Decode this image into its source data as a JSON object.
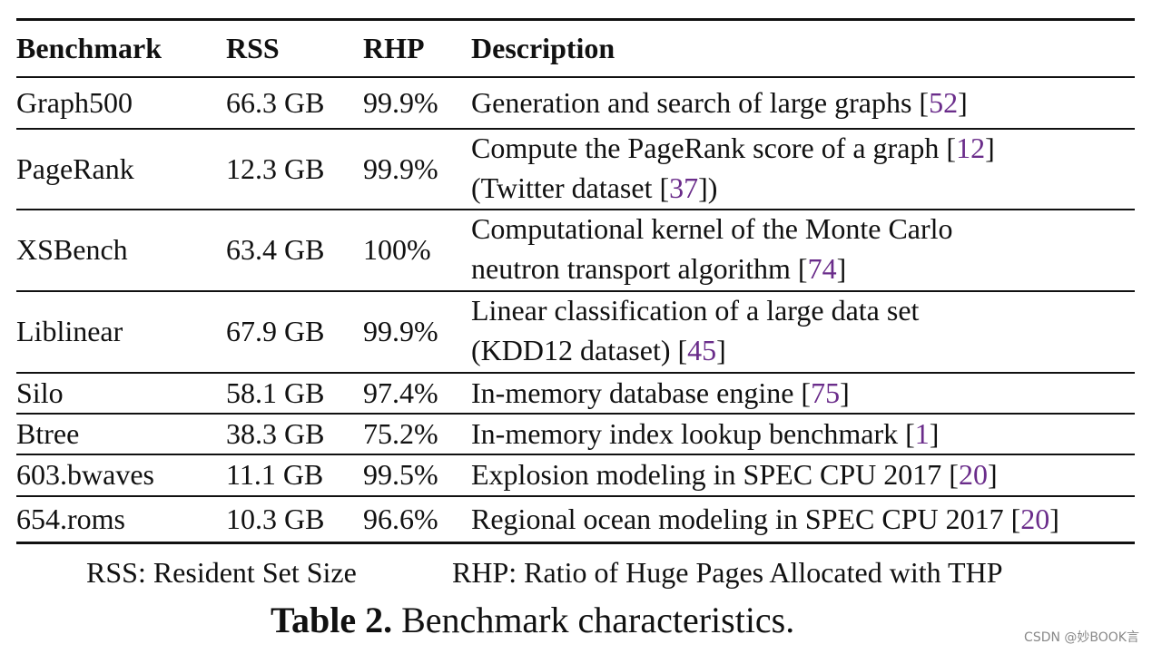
{
  "table": {
    "header": [
      "Benchmark",
      "RSS",
      "RHP",
      "Description"
    ],
    "rows": [
      [
        "Graph500",
        "66.3 GB",
        "99.9%",
        [
          [
            "Generation and search of large graphs [",
            "52",
            "]"
          ]
        ]
      ],
      [
        "PageRank",
        "12.3 GB",
        "99.9%",
        [
          [
            "Compute the PageRank score of a graph [",
            "12",
            "]"
          ],
          [
            "(Twitter dataset [",
            "37",
            "])"
          ]
        ]
      ],
      [
        "XSBench",
        "63.4 GB",
        "100%",
        [
          [
            "Computational kernel of the Monte Carlo"
          ],
          [
            "neutron transport algorithm [",
            "74",
            "]"
          ]
        ]
      ],
      [
        "Liblinear",
        "67.9 GB",
        "99.9%",
        [
          [
            "Linear classification of a large data set"
          ],
          [
            "(KDD12 dataset) [",
            "45",
            "]"
          ]
        ]
      ],
      [
        "Silo",
        "58.1 GB",
        "97.4%",
        [
          [
            "In-memory database engine [",
            "75",
            "]"
          ]
        ]
      ],
      [
        "Btree",
        "38.3 GB",
        "75.2%",
        [
          [
            "In-memory index lookup benchmark [",
            "1",
            "]"
          ]
        ]
      ],
      [
        "603.bwaves",
        "11.1 GB",
        "99.5%",
        [
          [
            "Explosion modeling in SPEC CPU 2017 [",
            "20",
            "]"
          ]
        ]
      ],
      [
        "654.roms",
        "10.3 GB",
        "96.6%",
        [
          [
            "Regional ocean modeling in SPEC CPU 2017 [",
            "20",
            "]"
          ]
        ]
      ]
    ],
    "notes": [
      "RSS: Resident Set Size",
      "RHP: Ratio of Huge Pages Allocated with THP"
    ]
  },
  "caption": {
    "label": "Table 2.",
    "text": "Benchmark characteristics."
  },
  "watermark": "CSDN @妙BOOK言"
}
